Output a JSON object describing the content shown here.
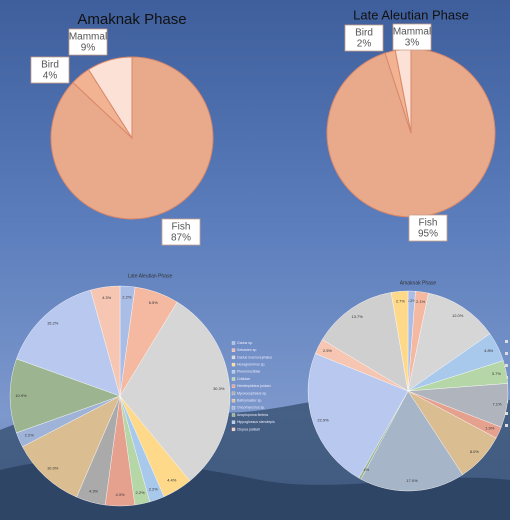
{
  "chart_data": [
    {
      "type": "pie",
      "title": "Amaknak Phase",
      "categories": [
        "Fish",
        "Bird",
        "Mammal"
      ],
      "values": [
        87,
        4,
        9
      ],
      "value_labels": [
        "87%",
        "4%",
        "9%"
      ],
      "colors": [
        "#e9a98b",
        "#f2b393",
        "#fbe1d6"
      ]
    },
    {
      "type": "pie",
      "title": "Late Aleutian Phase",
      "categories": [
        "Fish",
        "Bird",
        "Mammal"
      ],
      "values": [
        95,
        2,
        3
      ],
      "value_labels": [
        "95%",
        "2%",
        "3%"
      ],
      "colors": [
        "#e9a98b",
        "#f2b393",
        "#fbe1d6"
      ]
    },
    {
      "type": "pie",
      "title": "Late Aleutian Phase",
      "categories": [
        "Gadus sp.",
        "Sebastes sp.",
        "Gadus macrocephalus",
        "Hexagrammos sp.",
        "Pleuronectidae",
        "Cottidae",
        "Hemilepidotus jordani",
        "Myoxocephalus sp.",
        "Bathymaster sp.",
        "Oncorhynchus sp.",
        "Anoplopoma fimbria",
        "Hippoglossus stenolepis",
        "Clupea pallasii"
      ],
      "values": [
        2.2,
        6.5,
        30.3,
        4.4,
        2.2,
        2.2,
        4.3,
        4.3,
        10.9,
        2.2,
        10.9,
        15.2,
        4.3
      ],
      "value_labels": [
        "2.2%",
        "6.5%",
        "30.3%",
        "4.4%",
        "2.2%",
        "2.2%",
        "4.3%",
        "4.3%",
        "10.9%",
        "2.2%",
        "10.9%",
        "15.2%",
        "4.3%"
      ],
      "colors": [
        "#a9bde6",
        "#f4b9a0",
        "#d6d6d6",
        "#fed98a",
        "#a8c8ec",
        "#b5d6a6",
        "#e6a08e",
        "#aaaaaa",
        "#dbbd92",
        "#9fb3d8",
        "#9cb590",
        "#b8c8ee",
        "#f6c6b2"
      ]
    },
    {
      "type": "pie",
      "title": "Amaknak Phase",
      "values": [
        1.2,
        2.1,
        12.0,
        4.8,
        3.7,
        7.1,
        1.9,
        8.0,
        17.0,
        0.4,
        22.9,
        2.5,
        13.7,
        2.7
      ],
      "value_labels": [
        "1.2%",
        "2.1%",
        "12.0%",
        "4.8%",
        "3.7%",
        "7.1%",
        "1.9%",
        "8.0%",
        "17.0%",
        "0.4%",
        "22.9%",
        "2.5%",
        "13.7%",
        "2.7%"
      ],
      "colors": [
        "#a9bde6",
        "#f4b9a0",
        "#d6d6d6",
        "#a8c8ec",
        "#b5d6a6",
        "#b0b4bc",
        "#e6a08e",
        "#dbbd92",
        "#a7b5c9",
        "#9cb590",
        "#b8c8ee",
        "#f6c6b2",
        "#cfcfcf",
        "#fed98a"
      ]
    }
  ]
}
